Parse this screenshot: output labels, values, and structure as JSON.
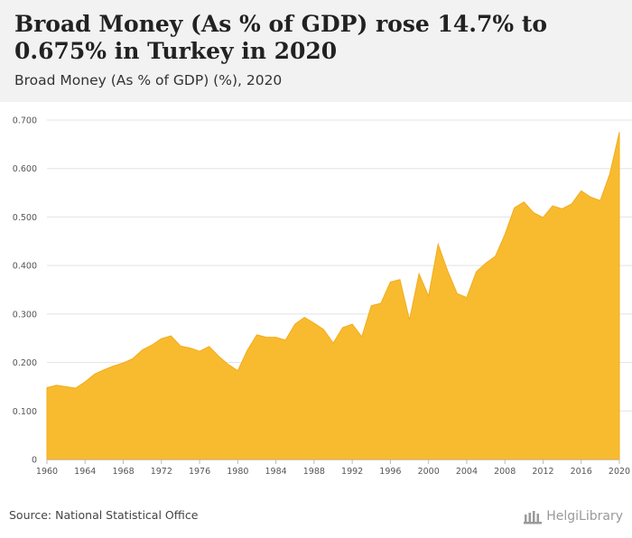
{
  "header": {
    "title": "Broad Money (As % of GDP) rose 14.7% to 0.675% in Turkey in 2020",
    "subtitle": "Broad Money (As % of GDP) (%), 2020"
  },
  "footer": {
    "source": "Source: National Statistical Office",
    "logo_text": "HelgiLibrary"
  },
  "colors": {
    "area_fill": "#f8bb30",
    "area_stroke": "#f2ac1a",
    "grid": "#e3e3e3",
    "header_bg": "#f2f2f2"
  },
  "chart_data": {
    "type": "area",
    "title": "",
    "xlabel": "",
    "ylabel": "",
    "ylim": [
      0,
      0.7
    ],
    "yticks": [
      0,
      0.1,
      0.2,
      0.3,
      0.4,
      0.5,
      0.6,
      0.7
    ],
    "ytick_labels": [
      "0",
      "0.100",
      "0.200",
      "0.300",
      "0.400",
      "0.500",
      "0.600",
      "0.700"
    ],
    "xlim": [
      1960,
      2020
    ],
    "xticks": [
      1960,
      1964,
      1968,
      1972,
      1976,
      1980,
      1984,
      1988,
      1992,
      1996,
      2000,
      2004,
      2008,
      2012,
      2016,
      2020
    ],
    "xtick_labels": [
      "1960",
      "1964",
      "1968",
      "1972",
      "1976",
      "1980",
      "1984",
      "1988",
      "1992",
      "1996",
      "2000",
      "2004",
      "2008",
      "2012",
      "2016",
      "2020"
    ],
    "grid": true,
    "legend": "none",
    "x": [
      1960,
      1961,
      1962,
      1963,
      1964,
      1965,
      1966,
      1967,
      1968,
      1969,
      1970,
      1971,
      1972,
      1973,
      1974,
      1975,
      1976,
      1977,
      1978,
      1979,
      1980,
      1981,
      1982,
      1983,
      1984,
      1985,
      1986,
      1987,
      1988,
      1989,
      1990,
      1991,
      1992,
      1993,
      1994,
      1995,
      1996,
      1997,
      1998,
      1999,
      2000,
      2001,
      2002,
      2003,
      2004,
      2005,
      2006,
      2007,
      2008,
      2009,
      2010,
      2011,
      2012,
      2013,
      2014,
      2015,
      2016,
      2017,
      2018,
      2019,
      2020
    ],
    "values": [
      0.148,
      0.153,
      0.15,
      0.147,
      0.16,
      0.176,
      0.185,
      0.193,
      0.199,
      0.208,
      0.226,
      0.236,
      0.249,
      0.255,
      0.234,
      0.23,
      0.223,
      0.233,
      0.213,
      0.196,
      0.183,
      0.225,
      0.257,
      0.252,
      0.252,
      0.246,
      0.279,
      0.293,
      0.281,
      0.268,
      0.24,
      0.272,
      0.279,
      0.253,
      0.317,
      0.322,
      0.366,
      0.371,
      0.288,
      0.383,
      0.337,
      0.444,
      0.389,
      0.342,
      0.334,
      0.387,
      0.405,
      0.419,
      0.464,
      0.519,
      0.531,
      0.509,
      0.499,
      0.523,
      0.517,
      0.527,
      0.554,
      0.541,
      0.534,
      0.589,
      0.675
    ]
  }
}
